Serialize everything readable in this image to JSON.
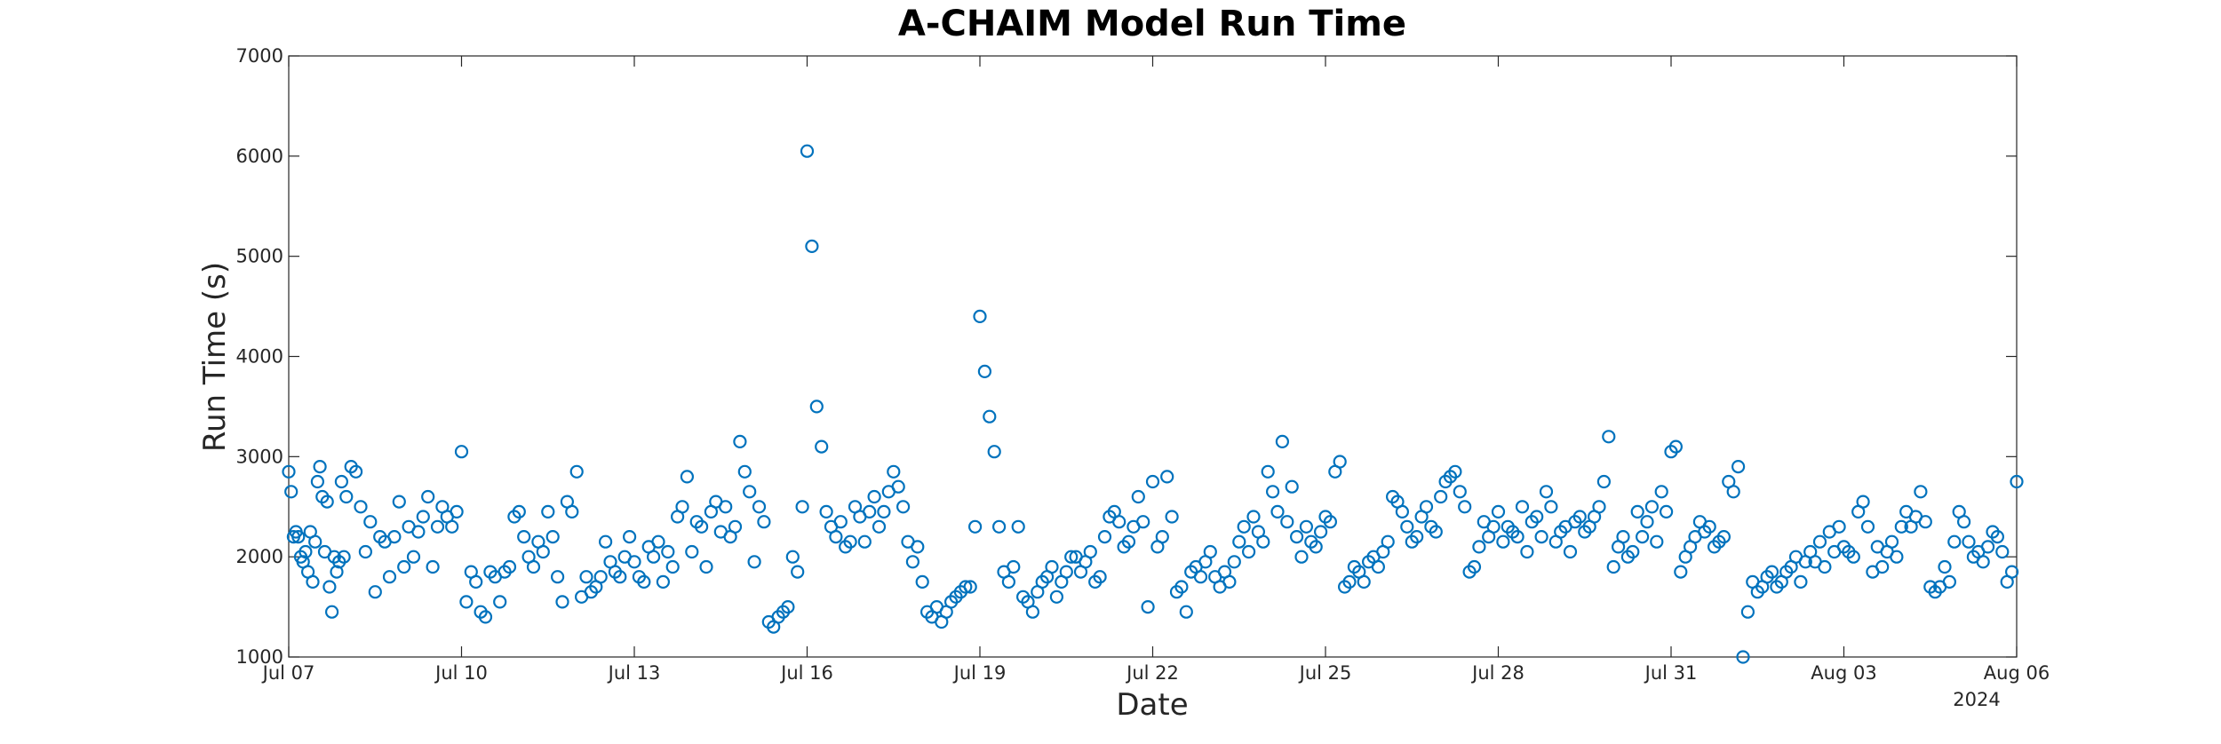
{
  "chart_data": {
    "type": "scatter",
    "title": "A-CHAIM Model Run Time",
    "xlabel": "Date",
    "ylabel": "Run Time (s)",
    "year_label": "2024",
    "xlim": [
      "2024-07-07",
      "2024-08-06"
    ],
    "ylim": [
      1000,
      7000
    ],
    "x_ticks": [
      "Jul 07",
      "Jul 10",
      "Jul 13",
      "Jul 16",
      "Jul 19",
      "Jul 22",
      "Jul 25",
      "Jul 28",
      "Jul 31",
      "Aug 03",
      "Aug 06"
    ],
    "y_ticks": [
      "1000",
      "2000",
      "3000",
      "4000",
      "5000",
      "6000",
      "7000"
    ],
    "grid": false,
    "marker": "open-circle",
    "marker_color": "#0072BD",
    "series": [
      {
        "x": [
          "2024-07-07 00:00",
          "2024-07-07 01:00",
          "2024-07-07 02:00",
          "2024-07-07 03:00",
          "2024-07-07 04:00",
          "2024-07-07 05:00",
          "2024-07-07 06:00",
          "2024-07-07 07:00",
          "2024-07-07 08:00",
          "2024-07-07 09:00",
          "2024-07-07 10:00",
          "2024-07-07 11:00",
          "2024-07-07 12:00",
          "2024-07-07 13:00",
          "2024-07-07 14:00",
          "2024-07-07 15:00",
          "2024-07-07 16:00",
          "2024-07-07 17:00",
          "2024-07-07 18:00",
          "2024-07-07 19:00",
          "2024-07-07 20:00",
          "2024-07-07 21:00",
          "2024-07-07 22:00",
          "2024-07-07 23:00",
          "2024-07-08 00:00",
          "2024-07-08 02:00",
          "2024-07-08 04:00",
          "2024-07-08 06:00",
          "2024-07-08 08:00",
          "2024-07-08 10:00",
          "2024-07-08 12:00",
          "2024-07-08 14:00",
          "2024-07-08 16:00",
          "2024-07-08 18:00",
          "2024-07-08 20:00",
          "2024-07-08 22:00",
          "2024-07-09 00:00",
          "2024-07-09 02:00",
          "2024-07-09 04:00",
          "2024-07-09 06:00",
          "2024-07-09 08:00",
          "2024-07-09 10:00",
          "2024-07-09 12:00",
          "2024-07-09 14:00",
          "2024-07-09 16:00",
          "2024-07-09 18:00",
          "2024-07-09 20:00",
          "2024-07-09 22:00",
          "2024-07-10 00:00",
          "2024-07-10 02:00",
          "2024-07-10 04:00",
          "2024-07-10 06:00",
          "2024-07-10 08:00",
          "2024-07-10 10:00",
          "2024-07-10 12:00",
          "2024-07-10 14:00",
          "2024-07-10 16:00",
          "2024-07-10 18:00",
          "2024-07-10 20:00",
          "2024-07-10 22:00",
          "2024-07-11 00:00",
          "2024-07-11 02:00",
          "2024-07-11 04:00",
          "2024-07-11 06:00",
          "2024-07-11 08:00",
          "2024-07-11 10:00",
          "2024-07-11 12:00",
          "2024-07-11 14:00",
          "2024-07-11 16:00",
          "2024-07-11 18:00",
          "2024-07-11 20:00",
          "2024-07-11 22:00",
          "2024-07-12 00:00",
          "2024-07-12 02:00",
          "2024-07-12 04:00",
          "2024-07-12 06:00",
          "2024-07-12 08:00",
          "2024-07-12 10:00",
          "2024-07-12 12:00",
          "2024-07-12 14:00",
          "2024-07-12 16:00",
          "2024-07-12 18:00",
          "2024-07-12 20:00",
          "2024-07-12 22:00",
          "2024-07-13 00:00",
          "2024-07-13 02:00",
          "2024-07-13 04:00",
          "2024-07-13 06:00",
          "2024-07-13 08:00",
          "2024-07-13 10:00",
          "2024-07-13 12:00",
          "2024-07-13 14:00",
          "2024-07-13 16:00",
          "2024-07-13 18:00",
          "2024-07-13 20:00",
          "2024-07-13 22:00",
          "2024-07-14 00:00",
          "2024-07-14 02:00",
          "2024-07-14 04:00",
          "2024-07-14 06:00",
          "2024-07-14 08:00",
          "2024-07-14 10:00",
          "2024-07-14 12:00",
          "2024-07-14 14:00",
          "2024-07-14 16:00",
          "2024-07-14 18:00",
          "2024-07-14 20:00",
          "2024-07-14 22:00",
          "2024-07-15 00:00",
          "2024-07-15 02:00",
          "2024-07-15 04:00",
          "2024-07-15 06:00",
          "2024-07-15 08:00",
          "2024-07-15 10:00",
          "2024-07-15 12:00",
          "2024-07-15 14:00",
          "2024-07-15 16:00",
          "2024-07-15 18:00",
          "2024-07-15 20:00",
          "2024-07-15 22:00",
          "2024-07-16 00:00",
          "2024-07-16 02:00",
          "2024-07-16 04:00",
          "2024-07-16 06:00",
          "2024-07-16 08:00",
          "2024-07-16 10:00",
          "2024-07-16 12:00",
          "2024-07-16 14:00",
          "2024-07-16 16:00",
          "2024-07-16 18:00",
          "2024-07-16 20:00",
          "2024-07-16 22:00",
          "2024-07-17 00:00",
          "2024-07-17 02:00",
          "2024-07-17 04:00",
          "2024-07-17 06:00",
          "2024-07-17 08:00",
          "2024-07-17 10:00",
          "2024-07-17 12:00",
          "2024-07-17 14:00",
          "2024-07-17 16:00",
          "2024-07-17 18:00",
          "2024-07-17 20:00",
          "2024-07-17 22:00",
          "2024-07-18 00:00",
          "2024-07-18 02:00",
          "2024-07-18 04:00",
          "2024-07-18 06:00",
          "2024-07-18 08:00",
          "2024-07-18 10:00",
          "2024-07-18 12:00",
          "2024-07-18 14:00",
          "2024-07-18 16:00",
          "2024-07-18 18:00",
          "2024-07-18 20:00",
          "2024-07-18 22:00",
          "2024-07-19 00:00",
          "2024-07-19 02:00",
          "2024-07-19 04:00",
          "2024-07-19 06:00",
          "2024-07-19 08:00",
          "2024-07-19 10:00",
          "2024-07-19 12:00",
          "2024-07-19 14:00",
          "2024-07-19 16:00",
          "2024-07-19 18:00",
          "2024-07-19 20:00",
          "2024-07-19 22:00",
          "2024-07-20 00:00",
          "2024-07-20 02:00",
          "2024-07-20 04:00",
          "2024-07-20 06:00",
          "2024-07-20 08:00",
          "2024-07-20 10:00",
          "2024-07-20 12:00",
          "2024-07-20 14:00",
          "2024-07-20 16:00",
          "2024-07-20 18:00",
          "2024-07-20 20:00",
          "2024-07-20 22:00",
          "2024-07-21 00:00",
          "2024-07-21 02:00",
          "2024-07-21 04:00",
          "2024-07-21 06:00",
          "2024-07-21 08:00",
          "2024-07-21 10:00",
          "2024-07-21 12:00",
          "2024-07-21 14:00",
          "2024-07-21 16:00",
          "2024-07-21 18:00",
          "2024-07-21 20:00",
          "2024-07-21 22:00",
          "2024-07-22 00:00",
          "2024-07-22 02:00",
          "2024-07-22 04:00",
          "2024-07-22 06:00",
          "2024-07-22 08:00",
          "2024-07-22 10:00",
          "2024-07-22 12:00",
          "2024-07-22 14:00",
          "2024-07-22 16:00",
          "2024-07-22 18:00",
          "2024-07-22 20:00",
          "2024-07-22 22:00",
          "2024-07-23 00:00",
          "2024-07-23 02:00",
          "2024-07-23 04:00",
          "2024-07-23 06:00",
          "2024-07-23 08:00",
          "2024-07-23 10:00",
          "2024-07-23 12:00",
          "2024-07-23 14:00",
          "2024-07-23 16:00",
          "2024-07-23 18:00",
          "2024-07-23 20:00",
          "2024-07-23 22:00",
          "2024-07-24 00:00",
          "2024-07-24 02:00",
          "2024-07-24 04:00",
          "2024-07-24 06:00",
          "2024-07-24 08:00",
          "2024-07-24 10:00",
          "2024-07-24 12:00",
          "2024-07-24 14:00",
          "2024-07-24 16:00",
          "2024-07-24 18:00",
          "2024-07-24 20:00",
          "2024-07-24 22:00",
          "2024-07-25 00:00",
          "2024-07-25 02:00",
          "2024-07-25 04:00",
          "2024-07-25 06:00",
          "2024-07-25 08:00",
          "2024-07-25 10:00",
          "2024-07-25 12:00",
          "2024-07-25 14:00",
          "2024-07-25 16:00",
          "2024-07-25 18:00",
          "2024-07-25 20:00",
          "2024-07-25 22:00",
          "2024-07-26 00:00",
          "2024-07-26 02:00",
          "2024-07-26 04:00",
          "2024-07-26 06:00",
          "2024-07-26 08:00",
          "2024-07-26 10:00",
          "2024-07-26 12:00",
          "2024-07-26 14:00",
          "2024-07-26 16:00",
          "2024-07-26 18:00",
          "2024-07-26 20:00",
          "2024-07-26 22:00",
          "2024-07-27 00:00",
          "2024-07-27 02:00",
          "2024-07-27 04:00",
          "2024-07-27 06:00",
          "2024-07-27 08:00",
          "2024-07-27 10:00",
          "2024-07-27 12:00",
          "2024-07-27 14:00",
          "2024-07-27 16:00",
          "2024-07-27 18:00",
          "2024-07-27 20:00",
          "2024-07-27 22:00",
          "2024-07-28 00:00",
          "2024-07-28 02:00",
          "2024-07-28 04:00",
          "2024-07-28 06:00",
          "2024-07-28 08:00",
          "2024-07-28 10:00",
          "2024-07-28 12:00",
          "2024-07-28 14:00",
          "2024-07-28 16:00",
          "2024-07-28 18:00",
          "2024-07-28 20:00",
          "2024-07-28 22:00",
          "2024-07-29 00:00",
          "2024-07-29 02:00",
          "2024-07-29 04:00",
          "2024-07-29 06:00",
          "2024-07-29 08:00",
          "2024-07-29 10:00",
          "2024-07-29 12:00",
          "2024-07-29 14:00",
          "2024-07-29 16:00",
          "2024-07-29 18:00",
          "2024-07-29 20:00",
          "2024-07-29 22:00",
          "2024-07-30 00:00",
          "2024-07-30 02:00",
          "2024-07-30 04:00",
          "2024-07-30 06:00",
          "2024-07-30 08:00",
          "2024-07-30 10:00",
          "2024-07-30 12:00",
          "2024-07-30 14:00",
          "2024-07-30 16:00",
          "2024-07-30 18:00",
          "2024-07-30 20:00",
          "2024-07-30 22:00",
          "2024-07-31 00:00",
          "2024-07-31 02:00",
          "2024-07-31 04:00",
          "2024-07-31 06:00",
          "2024-07-31 08:00",
          "2024-07-31 10:00",
          "2024-07-31 12:00",
          "2024-07-31 14:00",
          "2024-07-31 16:00",
          "2024-07-31 18:00",
          "2024-07-31 20:00",
          "2024-07-31 22:00",
          "2024-08-01 00:00",
          "2024-08-01 02:00",
          "2024-08-01 04:00",
          "2024-08-01 06:00",
          "2024-08-01 08:00",
          "2024-08-01 10:00",
          "2024-08-01 12:00",
          "2024-08-01 14:00",
          "2024-08-01 16:00",
          "2024-08-01 18:00",
          "2024-08-01 20:00",
          "2024-08-01 22:00",
          "2024-08-02 00:00",
          "2024-08-02 02:00",
          "2024-08-02 04:00",
          "2024-08-02 06:00",
          "2024-08-02 08:00",
          "2024-08-02 10:00",
          "2024-08-02 12:00",
          "2024-08-02 14:00",
          "2024-08-02 16:00",
          "2024-08-02 18:00",
          "2024-08-02 20:00",
          "2024-08-02 22:00",
          "2024-08-03 00:00",
          "2024-08-03 02:00",
          "2024-08-03 04:00",
          "2024-08-03 06:00",
          "2024-08-03 08:00",
          "2024-08-03 10:00",
          "2024-08-03 12:00",
          "2024-08-03 14:00",
          "2024-08-03 16:00",
          "2024-08-03 18:00",
          "2024-08-03 20:00",
          "2024-08-03 22:00",
          "2024-08-04 00:00",
          "2024-08-04 02:00",
          "2024-08-04 04:00",
          "2024-08-04 06:00",
          "2024-08-04 08:00",
          "2024-08-04 10:00",
          "2024-08-04 12:00",
          "2024-08-04 14:00",
          "2024-08-04 16:00",
          "2024-08-04 18:00",
          "2024-08-04 20:00",
          "2024-08-04 22:00",
          "2024-08-05 00:00",
          "2024-08-05 02:00",
          "2024-08-05 04:00",
          "2024-08-05 06:00",
          "2024-08-05 08:00",
          "2024-08-05 10:00",
          "2024-08-05 12:00",
          "2024-08-05 14:00",
          "2024-08-05 16:00",
          "2024-08-05 18:00",
          "2024-08-05 20:00",
          "2024-08-05 22:00",
          "2024-08-06 00:00"
        ],
        "y": [
          2850,
          2650,
          2200,
          2250,
          2200,
          2000,
          1950,
          2050,
          1850,
          2250,
          1750,
          2150,
          2750,
          2900,
          2600,
          2050,
          2550,
          1700,
          1450,
          2000,
          1850,
          1950,
          2750,
          2000,
          2600,
          2900,
          2850,
          2500,
          2050,
          2350,
          1650,
          2200,
          2150,
          1800,
          2200,
          2550,
          1900,
          2300,
          2000,
          2250,
          2400,
          2600,
          1900,
          2300,
          2500,
          2400,
          2300,
          2450,
          3050,
          1550,
          1850,
          1750,
          1450,
          1400,
          1850,
          1800,
          1550,
          1850,
          1900,
          2400,
          2450,
          2200,
          2000,
          1900,
          2150,
          2050,
          2450,
          2200,
          1800,
          1550,
          2550,
          2450,
          2850,
          1600,
          1800,
          1650,
          1700,
          1800,
          2150,
          1950,
          1850,
          1800,
          2000,
          2200,
          1950,
          1800,
          1750,
          2100,
          2000,
          2150,
          1750,
          2050,
          1900,
          2400,
          2500,
          2800,
          2050,
          2350,
          2300,
          1900,
          2450,
          2550,
          2250,
          2500,
          2200,
          2300,
          3150,
          2850,
          2650,
          1950,
          2500,
          2350,
          1350,
          1300,
          1400,
          1450,
          1500,
          2000,
          1850,
          2500,
          6050,
          5100,
          3500,
          3100,
          2450,
          2300,
          2200,
          2350,
          2100,
          2150,
          2500,
          2400,
          2150,
          2450,
          2600,
          2300,
          2450,
          2650,
          2850,
          2700,
          2500,
          2150,
          1950,
          2100,
          1750,
          1450,
          1400,
          1500,
          1350,
          1450,
          1550,
          1600,
          1650,
          1700,
          1700,
          2300,
          4400,
          3850,
          3400,
          3050,
          2300,
          1850,
          1750,
          1900,
          2300,
          1600,
          1550,
          1450,
          1650,
          1750,
          1800,
          1900,
          1600,
          1750,
          1850,
          2000,
          2000,
          1850,
          1950,
          2050,
          1750,
          1800,
          2200,
          2400,
          2450,
          2350,
          2100,
          2150,
          2300,
          2600,
          2350,
          1500,
          2750,
          2100,
          2200,
          2800,
          2400,
          1650,
          1700,
          1450,
          1850,
          1900,
          1800,
          1950,
          2050,
          1800,
          1700,
          1850,
          1750,
          1950,
          2150,
          2300,
          2050,
          2400,
          2250,
          2150,
          2850,
          2650,
          2450,
          3150,
          2350,
          2700,
          2200,
          2000,
          2300,
          2150,
          2100,
          2250,
          2400,
          2350,
          2850,
          2950,
          1700,
          1750,
          1900,
          1850,
          1750,
          1950,
          2000,
          1900,
          2050,
          2150,
          2600,
          2550,
          2450,
          2300,
          2150,
          2200,
          2400,
          2500,
          2300,
          2250,
          2600,
          2750,
          2800,
          2850,
          2650,
          2500,
          1850,
          1900,
          2100,
          2350,
          2200,
          2300,
          2450,
          2150,
          2300,
          2250,
          2200,
          2500,
          2050,
          2350,
          2400,
          2200,
          2650,
          2500,
          2150,
          2250,
          2300,
          2050,
          2350,
          2400,
          2250,
          2300,
          2400,
          2500,
          2750,
          3200,
          1900,
          2100,
          2200,
          2000,
          2050,
          2450,
          2200,
          2350,
          2500,
          2150,
          2650,
          2450,
          3050,
          3100,
          1850,
          2000,
          2100,
          2200,
          2350,
          2250,
          2300,
          2100,
          2150,
          2200,
          2750,
          2650,
          2900,
          1000,
          1450,
          1750,
          1650,
          1700,
          1800,
          1850,
          1700,
          1750,
          1850,
          1900,
          2000,
          1750,
          1950,
          2050,
          1950,
          2150,
          1900,
          2250,
          2050,
          2300,
          2100,
          2050,
          2000,
          2450,
          2550,
          2300,
          1850,
          2100,
          1900,
          2050,
          2150,
          2000,
          2300,
          2450,
          2300,
          2400,
          2650,
          2350,
          1700,
          1650,
          1700,
          1900,
          1750,
          2150,
          2450,
          2350,
          2150,
          2000,
          2050,
          1950,
          2100,
          2250,
          2200,
          2050,
          1750,
          1850,
          2750
        ]
      }
    ]
  }
}
